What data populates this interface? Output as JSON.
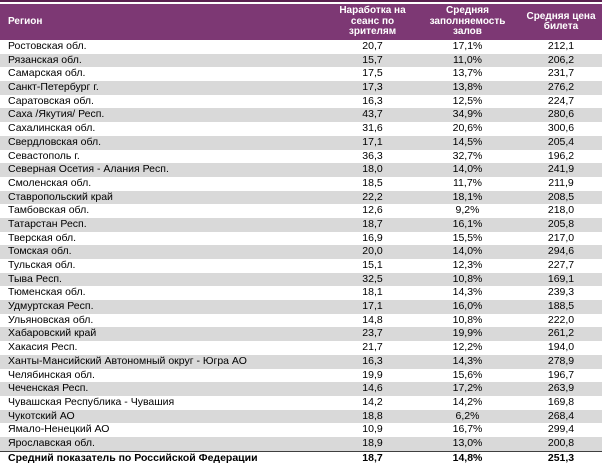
{
  "table": {
    "columns": [
      {
        "label": "Регион"
      },
      {
        "label": "Наработка на\nсеанс по зрителям"
      },
      {
        "label": "Средняя\nзаполняемость\nзалов"
      },
      {
        "label": "Средняя цена\nбилета"
      }
    ],
    "rows": [
      [
        "Ростовская обл.",
        "20,7",
        "17,1%",
        "212,1"
      ],
      [
        "Рязанская обл.",
        "15,7",
        "11,0%",
        "206,2"
      ],
      [
        "Самарская обл.",
        "17,5",
        "13,7%",
        "231,7"
      ],
      [
        "Санкт-Петербург г.",
        "17,3",
        "13,8%",
        "276,2"
      ],
      [
        "Саратовская обл.",
        "16,3",
        "12,5%",
        "224,7"
      ],
      [
        "Саха /Якутия/ Респ.",
        "43,7",
        "34,9%",
        "280,6"
      ],
      [
        "Сахалинская обл.",
        "31,6",
        "20,6%",
        "300,6"
      ],
      [
        "Свердловская обл.",
        "17,1",
        "14,5%",
        "205,4"
      ],
      [
        "Севастополь г.",
        "36,3",
        "32,7%",
        "196,2"
      ],
      [
        "Северная Осетия - Алания Респ.",
        "18,0",
        "14,0%",
        "241,9"
      ],
      [
        "Смоленская обл.",
        "18,5",
        "11,7%",
        "211,9"
      ],
      [
        "Ставропольский край",
        "22,2",
        "18,1%",
        "208,5"
      ],
      [
        "Тамбовская обл.",
        "12,6",
        "9,2%",
        "218,0"
      ],
      [
        "Татарстан Респ.",
        "18,7",
        "16,1%",
        "205,8"
      ],
      [
        "Тверская обл.",
        "16,9",
        "15,5%",
        "217,0"
      ],
      [
        "Томская обл.",
        "20,0",
        "14,0%",
        "294,6"
      ],
      [
        "Тульская обл.",
        "15,1",
        "12,3%",
        "227,7"
      ],
      [
        "Тыва Респ.",
        "32,5",
        "10,8%",
        "169,1"
      ],
      [
        "Тюменская обл.",
        "18,1",
        "14,3%",
        "239,3"
      ],
      [
        "Удмуртская Респ.",
        "17,1",
        "16,0%",
        "188,5"
      ],
      [
        "Ульяновская обл.",
        "14,8",
        "10,8%",
        "222,0"
      ],
      [
        "Хабаровский край",
        "23,7",
        "19,9%",
        "261,2"
      ],
      [
        "Хакасия Респ.",
        "21,7",
        "12,2%",
        "194,0"
      ],
      [
        "Ханты-Мансийский Автономный округ - Югра АО",
        "16,3",
        "14,3%",
        "278,9"
      ],
      [
        "Челябинская обл.",
        "19,9",
        "15,6%",
        "196,7"
      ],
      [
        "Чеченская Респ.",
        "14,6",
        "17,2%",
        "263,9"
      ],
      [
        "Чувашская Республика - Чувашия",
        "14,2",
        "14,2%",
        "169,8"
      ],
      [
        "Чукотский АО",
        "18,8",
        "6,2%",
        "268,4"
      ],
      [
        "Ямало-Ненецкий АО",
        "10,9",
        "16,7%",
        "299,4"
      ],
      [
        "Ярославская обл.",
        "18,9",
        "13,0%",
        "200,8"
      ]
    ],
    "summary_row": [
      "Средний показатель по Российской Федерации",
      "18,7",
      "14,8%",
      "251,3"
    ],
    "colors": {
      "header_bg": "#7D3874",
      "header_text": "#FFFFFF",
      "stripe_bg": "#D9D9D9",
      "accent_line": "#5B2150",
      "summary_border": "#3F3F3F"
    }
  }
}
